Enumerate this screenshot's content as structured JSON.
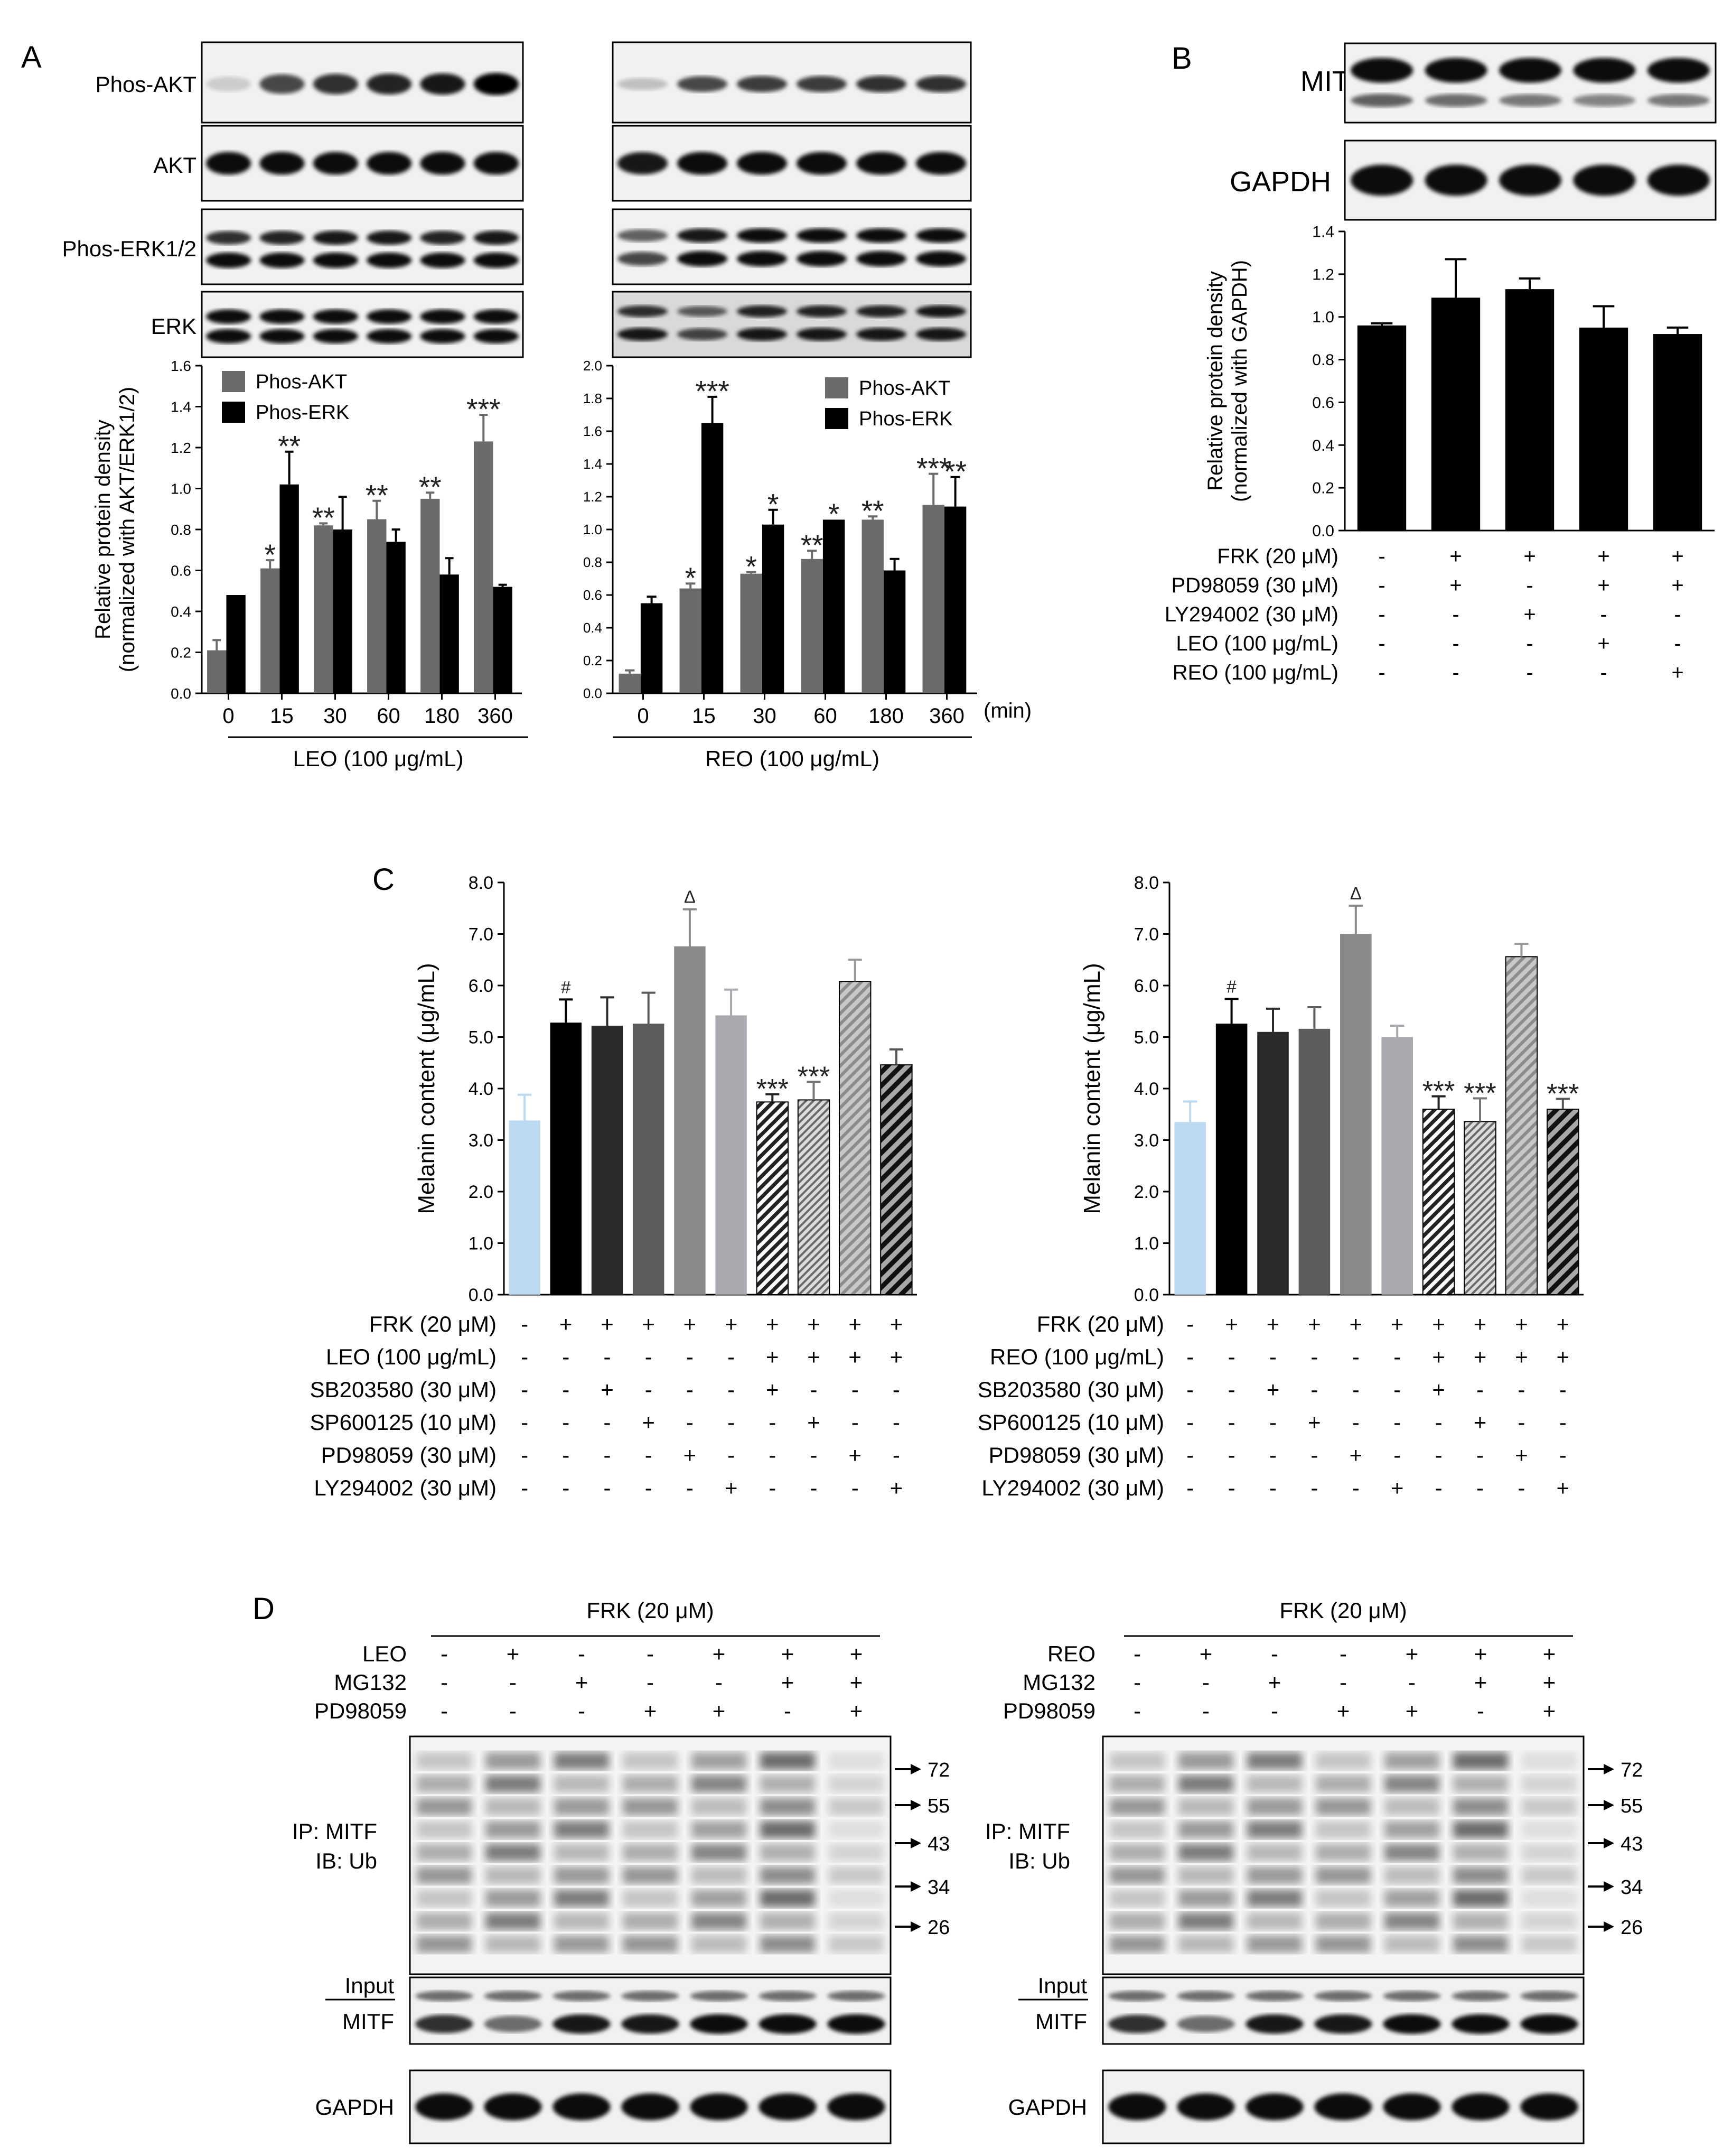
{
  "panelA": {
    "letter": "A",
    "blot_labels": [
      "Phos-AKT",
      "AKT",
      "Phos-ERK1/2",
      "ERK"
    ],
    "legend": [
      "Phos-AKT",
      "Phos-ERK"
    ],
    "time_unit": "(min)"
  },
  "panelB": {
    "letter": "B",
    "blot_labels": [
      "MITF",
      "GAPDH"
    ],
    "rows": [
      {
        "label": "FRK (20 μM)",
        "signs": [
          "-",
          "+",
          "+",
          "+",
          "+"
        ]
      },
      {
        "label": "PD98059 (30 μM)",
        "signs": [
          "-",
          "+",
          "-",
          "+",
          "+"
        ]
      },
      {
        "label": "LY294002 (30 μM)",
        "signs": [
          "-",
          "-",
          "+",
          "-",
          "-"
        ]
      },
      {
        "label": "LEO (100 μg/mL)",
        "signs": [
          "-",
          "-",
          "-",
          "+",
          "-"
        ]
      },
      {
        "label": "REO (100 μg/mL)",
        "signs": [
          "-",
          "-",
          "-",
          "-",
          "+"
        ]
      }
    ]
  },
  "panelC": {
    "letter": "C",
    "left_rows": [
      {
        "label": "FRK (20 μM)",
        "signs": [
          "-",
          "+",
          "+",
          "+",
          "+",
          "+",
          "+",
          "+",
          "+",
          "+"
        ]
      },
      {
        "label": "LEO (100 μg/mL)",
        "signs": [
          "-",
          "-",
          "-",
          "-",
          "-",
          "-",
          "+",
          "+",
          "+",
          "+"
        ]
      },
      {
        "label": "SB203580 (30 μM)",
        "signs": [
          "-",
          "-",
          "+",
          "-",
          "-",
          "-",
          "+",
          "-",
          "-",
          "-"
        ]
      },
      {
        "label": "SP600125 (10 μM)",
        "signs": [
          "-",
          "-",
          "-",
          "+",
          "-",
          "-",
          "-",
          "+",
          "-",
          "-"
        ]
      },
      {
        "label": "PD98059 (30 μM)",
        "signs": [
          "-",
          "-",
          "-",
          "-",
          "+",
          "-",
          "-",
          "-",
          "+",
          "-"
        ]
      },
      {
        "label": "LY294002 (30 μM)",
        "signs": [
          "-",
          "-",
          "-",
          "-",
          "-",
          "+",
          "-",
          "-",
          "-",
          "+"
        ]
      }
    ],
    "right_rows": [
      {
        "label": "FRK (20 μM)",
        "signs": [
          "-",
          "+",
          "+",
          "+",
          "+",
          "+",
          "+",
          "+",
          "+",
          "+"
        ]
      },
      {
        "label": "REO (100 μg/mL)",
        "signs": [
          "-",
          "-",
          "-",
          "-",
          "-",
          "-",
          "+",
          "+",
          "+",
          "+"
        ]
      },
      {
        "label": "SB203580 (30 μM)",
        "signs": [
          "-",
          "-",
          "+",
          "-",
          "-",
          "-",
          "+",
          "-",
          "-",
          "-"
        ]
      },
      {
        "label": "SP600125 (10 μM)",
        "signs": [
          "-",
          "-",
          "-",
          "+",
          "-",
          "-",
          "-",
          "+",
          "-",
          "-"
        ]
      },
      {
        "label": "PD98059 (30 μM)",
        "signs": [
          "-",
          "-",
          "-",
          "-",
          "+",
          "-",
          "-",
          "-",
          "+",
          "-"
        ]
      },
      {
        "label": "LY294002 (30 μM)",
        "signs": [
          "-",
          "-",
          "-",
          "-",
          "-",
          "+",
          "-",
          "-",
          "-",
          "+"
        ]
      }
    ]
  },
  "panelD": {
    "letter": "D",
    "header": "FRK (20 μM)",
    "left_rows": [
      {
        "label": "LEO",
        "signs": [
          "-",
          "+",
          "-",
          "-",
          "+",
          "+",
          "+"
        ]
      },
      {
        "label": "MG132",
        "signs": [
          "-",
          "-",
          "+",
          "-",
          "-",
          "+",
          "+"
        ]
      },
      {
        "label": "PD98059",
        "signs": [
          "-",
          "-",
          "-",
          "+",
          "+",
          "-",
          "+"
        ]
      }
    ],
    "right_rows": [
      {
        "label": "REO",
        "signs": [
          "-",
          "+",
          "-",
          "-",
          "+",
          "+",
          "+"
        ]
      },
      {
        "label": "MG132",
        "signs": [
          "-",
          "-",
          "+",
          "-",
          "-",
          "+",
          "+"
        ]
      },
      {
        "label": "PD98059",
        "signs": [
          "-",
          "-",
          "-",
          "+",
          "+",
          "-",
          "+"
        ]
      }
    ],
    "ip_label": [
      "IP: MITF",
      "IB: Ub"
    ],
    "input_label": "Input",
    "input_blot": "MITF",
    "loading_blot": "GAPDH",
    "markers": [
      "72",
      "55",
      "43",
      "34",
      "26"
    ]
  },
  "chart_data": [
    {
      "type": "bar",
      "panel": "A-left",
      "categories": [
        "0",
        "15",
        "30",
        "60",
        "180",
        "360"
      ],
      "xlabel": "LEO (100 μg/mL)",
      "ylabel": "Relative protein density (normalized with AKT/ERK1/2)",
      "ylim": [
        0,
        1.6
      ],
      "yticks": [
        "0.0",
        "0.2",
        "0.4",
        "0.6",
        "0.8",
        "1.0",
        "1.2",
        "1.4",
        "1.6"
      ],
      "series": [
        {
          "name": "Phos-AKT",
          "color": "#6b6b6b",
          "values": [
            0.21,
            0.61,
            0.82,
            0.85,
            0.95,
            1.23
          ],
          "errors": [
            0.05,
            0.04,
            0.01,
            0.09,
            0.03,
            0.13
          ],
          "sig": [
            "",
            "*",
            "**",
            "**",
            "**",
            "***"
          ]
        },
        {
          "name": "Phos-ERK",
          "color": "#000000",
          "values": [
            0.48,
            1.02,
            0.8,
            0.74,
            0.58,
            0.52
          ],
          "errors": [
            0.0,
            0.16,
            0.16,
            0.06,
            0.08,
            0.01
          ],
          "sig": [
            "",
            "**",
            "",
            "",
            "",
            ""
          ]
        }
      ]
    },
    {
      "type": "bar",
      "panel": "A-right",
      "categories": [
        "0",
        "15",
        "30",
        "60",
        "180",
        "360"
      ],
      "xlabel": "REO (100 μg/mL)",
      "ylabel": "",
      "ylim": [
        0,
        2.0
      ],
      "yticks": [
        "0.0",
        "0.2",
        "0.4",
        "0.6",
        "0.8",
        "1.0",
        "1.2",
        "1.4",
        "1.6",
        "1.8",
        "2.0"
      ],
      "series": [
        {
          "name": "Phos-AKT",
          "color": "#6b6b6b",
          "values": [
            0.12,
            0.64,
            0.73,
            0.82,
            1.06,
            1.15
          ],
          "errors": [
            0.02,
            0.03,
            0.01,
            0.05,
            0.02,
            0.19
          ],
          "sig": [
            "",
            "*",
            "*",
            "**",
            "**",
            "***"
          ]
        },
        {
          "name": "Phos-ERK",
          "color": "#000000",
          "values": [
            0.55,
            1.65,
            1.03,
            1.06,
            0.75,
            1.14
          ],
          "errors": [
            0.04,
            0.16,
            0.09,
            0.0,
            0.07,
            0.18
          ],
          "sig": [
            "",
            "***",
            "*",
            "*",
            "",
            "**"
          ]
        }
      ]
    },
    {
      "type": "bar",
      "panel": "B",
      "categories": [
        "1",
        "2",
        "3",
        "4",
        "5"
      ],
      "ylabel": "Relative protein density (normalized with GAPDH)",
      "ylim": [
        0,
        1.4
      ],
      "yticks": [
        "0.0",
        "0.2",
        "0.4",
        "0.6",
        "0.8",
        "1.0",
        "1.2",
        "1.4"
      ],
      "series": [
        {
          "color": "#000000",
          "values": [
            0.96,
            1.09,
            1.13,
            0.95,
            0.92
          ],
          "errors": [
            0.01,
            0.18,
            0.05,
            0.1,
            0.03
          ]
        }
      ]
    },
    {
      "type": "bar",
      "panel": "C-left",
      "categories": [
        "1",
        "2",
        "3",
        "4",
        "5",
        "6",
        "7",
        "8",
        "9",
        "10"
      ],
      "ylabel": "Melanin content (μg/mL)",
      "ylim": [
        0,
        8.0
      ],
      "yticks": [
        "0.0",
        "1.0",
        "2.0",
        "3.0",
        "4.0",
        "5.0",
        "6.0",
        "7.0",
        "8.0"
      ],
      "series": [
        {
          "values": [
            3.38,
            5.28,
            5.22,
            5.26,
            6.76,
            5.42,
            3.74,
            3.78,
            6.08,
            4.46
          ],
          "errors": [
            0.5,
            0.45,
            0.55,
            0.6,
            0.72,
            0.5,
            0.15,
            0.35,
            0.42,
            0.3
          ],
          "colors": [
            "#bcd9f2",
            "#000000",
            "#2b2b2b",
            "#5c5c5c",
            "#8a8a8a",
            "#a9a9af",
            "#222222",
            "#777777",
            "#9a9a9a",
            "#555555"
          ],
          "patterns": [
            "",
            "",
            "",
            "",
            "",
            "",
            "hatch-fine",
            "hatch-dots",
            "hatch-light",
            "hatch-bold"
          ],
          "sig": [
            "",
            "#",
            "",
            "",
            "Δ",
            "",
            "***",
            "***",
            "",
            ""
          ]
        }
      ]
    },
    {
      "type": "bar",
      "panel": "C-right",
      "categories": [
        "1",
        "2",
        "3",
        "4",
        "5",
        "6",
        "7",
        "8",
        "9",
        "10"
      ],
      "ylabel": "Melanin content (μg/mL)",
      "ylim": [
        0,
        8.0
      ],
      "yticks": [
        "0.0",
        "1.0",
        "2.0",
        "3.0",
        "4.0",
        "5.0",
        "6.0",
        "7.0",
        "8.0"
      ],
      "series": [
        {
          "values": [
            3.35,
            5.26,
            5.1,
            5.16,
            7.0,
            5.0,
            3.6,
            3.36,
            6.56,
            3.6
          ],
          "errors": [
            0.4,
            0.48,
            0.45,
            0.42,
            0.55,
            0.22,
            0.25,
            0.45,
            0.25,
            0.2
          ],
          "colors": [
            "#bcd9f2",
            "#000000",
            "#2b2b2b",
            "#5c5c5c",
            "#8a8a8a",
            "#a9a9af",
            "#222222",
            "#777777",
            "#9a9a9a",
            "#555555"
          ],
          "patterns": [
            "",
            "",
            "",
            "",
            "",
            "",
            "hatch-fine",
            "hatch-dots",
            "hatch-light",
            "hatch-bold"
          ],
          "sig": [
            "",
            "#",
            "",
            "",
            "Δ",
            "",
            "***",
            "***",
            "",
            "***"
          ]
        }
      ]
    }
  ]
}
